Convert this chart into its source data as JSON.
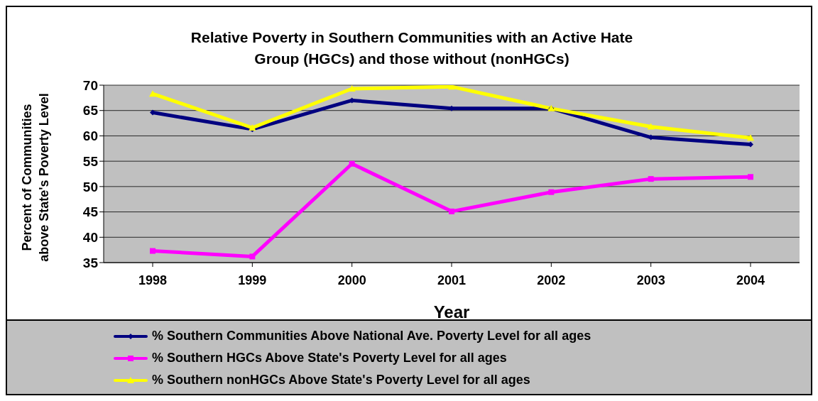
{
  "chart_data": {
    "type": "line",
    "title": "Relative Poverty in Southern Communities with an Active Hate Group (HGCs) and those without (nonHGCs)",
    "xlabel": "Year",
    "ylabel": "Percent of Communities above State's Poverty Level",
    "categories": [
      "1998",
      "1999",
      "2000",
      "2001",
      "2002",
      "2003",
      "2004"
    ],
    "series": [
      {
        "name": "% Southern Communities Above National Ave. Poverty Level for all ages",
        "color": "#000080",
        "marker": "diamond",
        "values": [
          64.6,
          61.3,
          67.0,
          65.4,
          65.4,
          59.7,
          58.3
        ]
      },
      {
        "name": "% Southern HGCs Above State's Poverty Level for all ages",
        "color": "#ff00ff",
        "marker": "square",
        "values": [
          37.3,
          36.2,
          54.5,
          45.1,
          48.9,
          51.5,
          51.9
        ]
      },
      {
        "name": "% Southern nonHGCs Above State's Poverty Level for all ages",
        "color": "#ffff00",
        "marker": "triangle",
        "values": [
          68.3,
          61.6,
          69.3,
          69.7,
          65.4,
          61.8,
          59.6
        ]
      }
    ],
    "ylim": [
      35,
      70
    ],
    "yticks": [
      35,
      40,
      45,
      50,
      55,
      60,
      65,
      70
    ],
    "grid": "y",
    "legend": "bottom"
  }
}
